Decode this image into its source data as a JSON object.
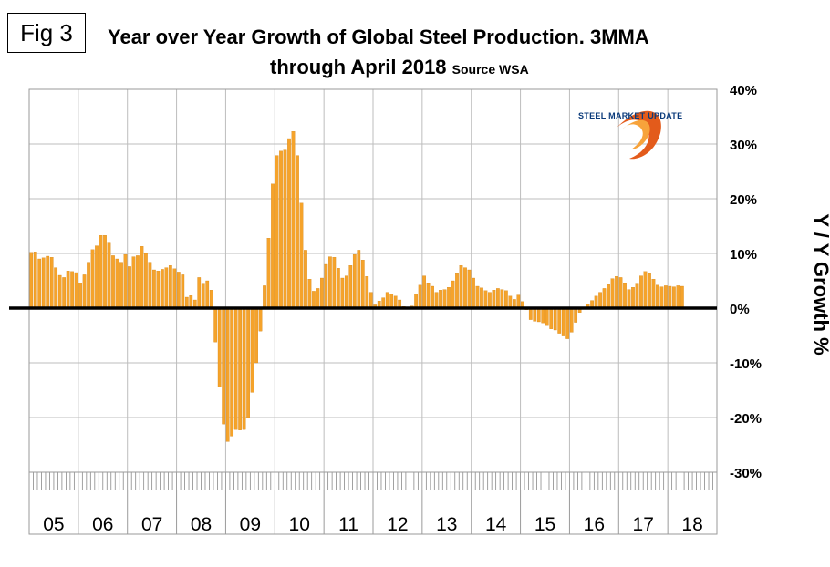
{
  "fig_label": "Fig 3",
  "title": {
    "line1": "Year over Year Growth of Global Steel Production. 3MMA",
    "line2": "through April 2018",
    "source": "Source WSA"
  },
  "logo": {
    "text": "STEEL MARKET UPDATE",
    "icon": "swoosh-logo-icon"
  },
  "colors": {
    "bar": "#F5A32B",
    "bar_edge": "#D07E0C",
    "zero_line": "#000000",
    "grid": "#bdbdbd"
  },
  "chart_data": {
    "type": "bar",
    "ylabel": "Y / Y Growth %",
    "ylim": [
      -30,
      40
    ],
    "y_ticks": [
      "40%",
      "30%",
      "20%",
      "10%",
      "0%",
      "-10%",
      "-20%",
      "-30%"
    ],
    "y_tick_values": [
      40,
      30,
      20,
      10,
      0,
      -10,
      -20,
      -30
    ],
    "grid": true,
    "year_labels": [
      "05",
      "06",
      "07",
      "08",
      "09",
      "10",
      "11",
      "12",
      "13",
      "14",
      "15",
      "16",
      "17",
      "18"
    ],
    "start": "2005-01",
    "end": "2018-04",
    "series": [
      {
        "values": [
          10.2,
          10.3,
          9.0,
          9.2,
          9.5,
          9.3,
          7.4,
          6.0,
          5.6,
          6.8,
          6.7,
          6.5,
          4.6,
          6.1,
          8.4,
          10.7,
          11.4,
          13.3,
          13.3,
          11.9,
          9.6,
          9.0,
          8.4,
          9.8,
          7.6,
          9.4,
          9.6,
          11.3,
          10.0,
          8.4,
          7.0,
          6.8,
          7.1,
          7.4,
          7.8,
          7.2,
          6.6,
          6.1,
          2.0,
          2.3,
          1.5,
          5.6,
          4.4,
          5.0,
          3.3,
          -6.2,
          -14.4,
          -21.2,
          -24.4,
          -23.4,
          -22.2,
          -22.3,
          -22.2,
          -20.0,
          -15.4,
          -10.0,
          -4.2,
          4.1,
          12.8,
          22.7,
          27.9,
          28.7,
          28.9,
          31.0,
          32.3,
          27.9,
          19.2,
          10.6,
          5.3,
          3.1,
          3.6,
          5.5,
          8.0,
          9.4,
          9.3,
          7.3,
          5.5,
          5.9,
          7.8,
          9.8,
          10.6,
          8.8,
          5.8,
          2.9,
          0.6,
          1.3,
          1.9,
          2.9,
          2.6,
          2.2,
          1.5,
          0.3,
          0.2,
          0.4,
          2.6,
          4.2,
          5.9,
          4.5,
          4.0,
          2.9,
          3.3,
          3.4,
          3.8,
          5.0,
          6.3,
          7.8,
          7.4,
          7.0,
          5.5,
          4.0,
          3.7,
          3.2,
          2.9,
          3.3,
          3.6,
          3.4,
          3.2,
          2.2,
          1.6,
          2.4,
          1.2,
          -0.3,
          -2.1,
          -2.4,
          -2.5,
          -2.7,
          -3.2,
          -3.8,
          -4.0,
          -4.6,
          -5.1,
          -5.6,
          -4.4,
          -2.6,
          -0.8,
          0.2,
          0.7,
          1.4,
          2.2,
          2.9,
          3.6,
          4.3,
          5.4,
          5.8,
          5.6,
          4.5,
          3.4,
          3.8,
          4.4,
          5.9,
          6.7,
          6.3,
          5.3,
          4.2,
          3.9,
          4.1,
          4.0,
          3.9,
          4.1,
          4.0
        ]
      }
    ]
  }
}
